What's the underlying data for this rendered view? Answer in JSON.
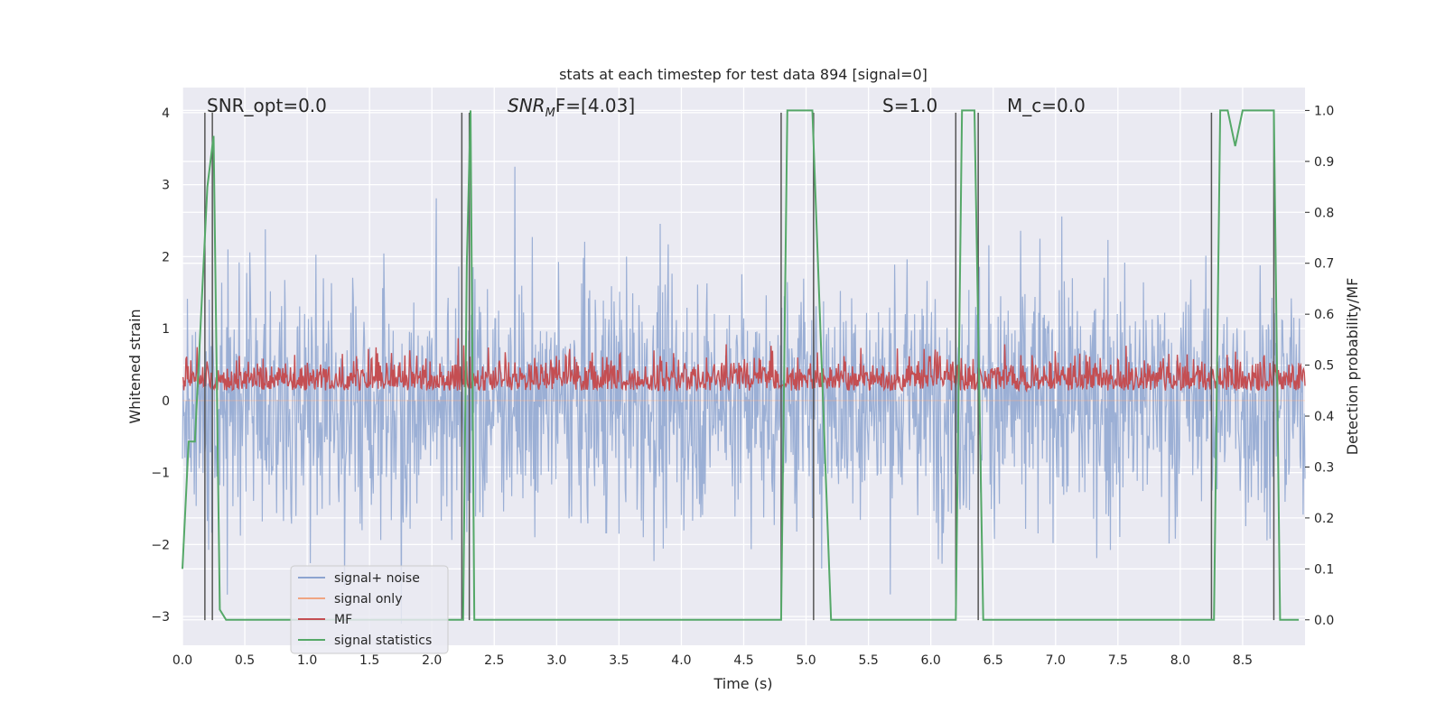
{
  "chart_data": {
    "type": "line",
    "title": "stats at each timestep for test data 894 [signal=0]",
    "xlabel": "Time (s)",
    "ylabel": "Whitened strain",
    "ylabel_right": "Detection probability/MF",
    "xlim": [
      0.0,
      9.0
    ],
    "ylim": [
      -3.4,
      4.35
    ],
    "ylim_right": [
      -0.05,
      1.045
    ],
    "x_ticks": [
      0.0,
      0.5,
      1.0,
      1.5,
      2.0,
      2.5,
      3.0,
      3.5,
      4.0,
      4.5,
      5.0,
      5.5,
      6.0,
      6.5,
      7.0,
      7.5,
      8.0,
      8.5
    ],
    "x_tick_labels": [
      "0.0",
      "0.5",
      "1.0",
      "1.5",
      "2.0",
      "2.5",
      "3.0",
      "3.5",
      "4.0",
      "4.5",
      "5.0",
      "5.5",
      "6.0",
      "6.5",
      "7.0",
      "7.5",
      "8.0",
      "8.5"
    ],
    "y_ticks": [
      -3,
      -2,
      -1,
      0,
      1,
      2,
      3,
      4
    ],
    "y_tick_labels": [
      "−3",
      "−2",
      "−1",
      "0",
      "1",
      "2",
      "3",
      "4"
    ],
    "y_ticks_right": [
      0.0,
      0.1,
      0.2,
      0.3,
      0.4,
      0.5,
      0.6,
      0.7,
      0.8,
      0.9,
      1.0
    ],
    "y_tick_labels_right": [
      "0.0",
      "0.1",
      "0.2",
      "0.3",
      "0.4",
      "0.5",
      "0.6",
      "0.7",
      "0.8",
      "0.9",
      "1.0"
    ],
    "grid": true,
    "legend_position": "lower-left",
    "annotations": [
      {
        "text": "SNR_opt=0.0",
        "x": 0.2,
        "y": 4.02
      },
      {
        "text": "SNR_MF=[4.03]",
        "x": 2.6,
        "y": 4.02,
        "math": "SNR",
        "sub": "M",
        "rest": "F=[4.03]"
      },
      {
        "text": "S=1.0",
        "x": 5.6,
        "y": 4.02
      },
      {
        "text": "M_c=0.0",
        "x": 6.6,
        "y": 4.02
      }
    ],
    "series": [
      {
        "name": "signal+ noise",
        "color": "#8da4d0",
        "kind": "noise",
        "envelope_approx": {
          "mean": 0.0,
          "typical_range": [
            -2.0,
            2.2
          ],
          "max": 3.25,
          "min": -3.1
        }
      },
      {
        "name": "signal only",
        "color": "#f0a582",
        "kind": "flat",
        "values_approx": 0.0
      },
      {
        "name": "MF",
        "color": "#c44e52",
        "kind": "noise-right-axis",
        "envelope_approx": {
          "baseline": 0.45,
          "typical_range": [
            0.45,
            0.55
          ],
          "max": 0.58
        }
      },
      {
        "name": "signal statistics",
        "color": "#55a868",
        "axis": "right",
        "points": [
          [
            0.0,
            0.1
          ],
          [
            0.05,
            0.35
          ],
          [
            0.1,
            0.35
          ],
          [
            0.15,
            0.6
          ],
          [
            0.2,
            0.85
          ],
          [
            0.25,
            0.95
          ],
          [
            0.3,
            0.02
          ],
          [
            0.35,
            0.0
          ],
          [
            2.25,
            0.0
          ],
          [
            2.28,
            0.7
          ],
          [
            2.31,
            1.0
          ],
          [
            2.34,
            0.0
          ],
          [
            4.8,
            0.0
          ],
          [
            4.85,
            1.0
          ],
          [
            5.05,
            1.0
          ],
          [
            5.2,
            0.0
          ],
          [
            6.2,
            0.0
          ],
          [
            6.25,
            1.0
          ],
          [
            6.35,
            1.0
          ],
          [
            6.42,
            0.0
          ],
          [
            8.27,
            0.0
          ],
          [
            8.32,
            1.0
          ],
          [
            8.38,
            1.0
          ],
          [
            8.44,
            0.93
          ],
          [
            8.5,
            1.0
          ],
          [
            8.75,
            1.0
          ],
          [
            8.8,
            0.0
          ],
          [
            8.95,
            0.0
          ]
        ]
      }
    ],
    "vertical_lines_x": [
      0.18,
      0.24,
      2.24,
      2.3,
      4.8,
      5.06,
      6.2,
      6.38,
      8.25,
      8.75
    ]
  },
  "legend": {
    "items": [
      {
        "label": "signal+ noise",
        "color": "#8da4d0"
      },
      {
        "label": "signal only",
        "color": "#f0a582"
      },
      {
        "label": "MF",
        "color": "#c44e52"
      },
      {
        "label": "signal statistics",
        "color": "#55a868"
      }
    ]
  },
  "colors": {
    "plot_background": "#eaeaf2",
    "grid": "#ffffff",
    "vline": "#555555"
  }
}
